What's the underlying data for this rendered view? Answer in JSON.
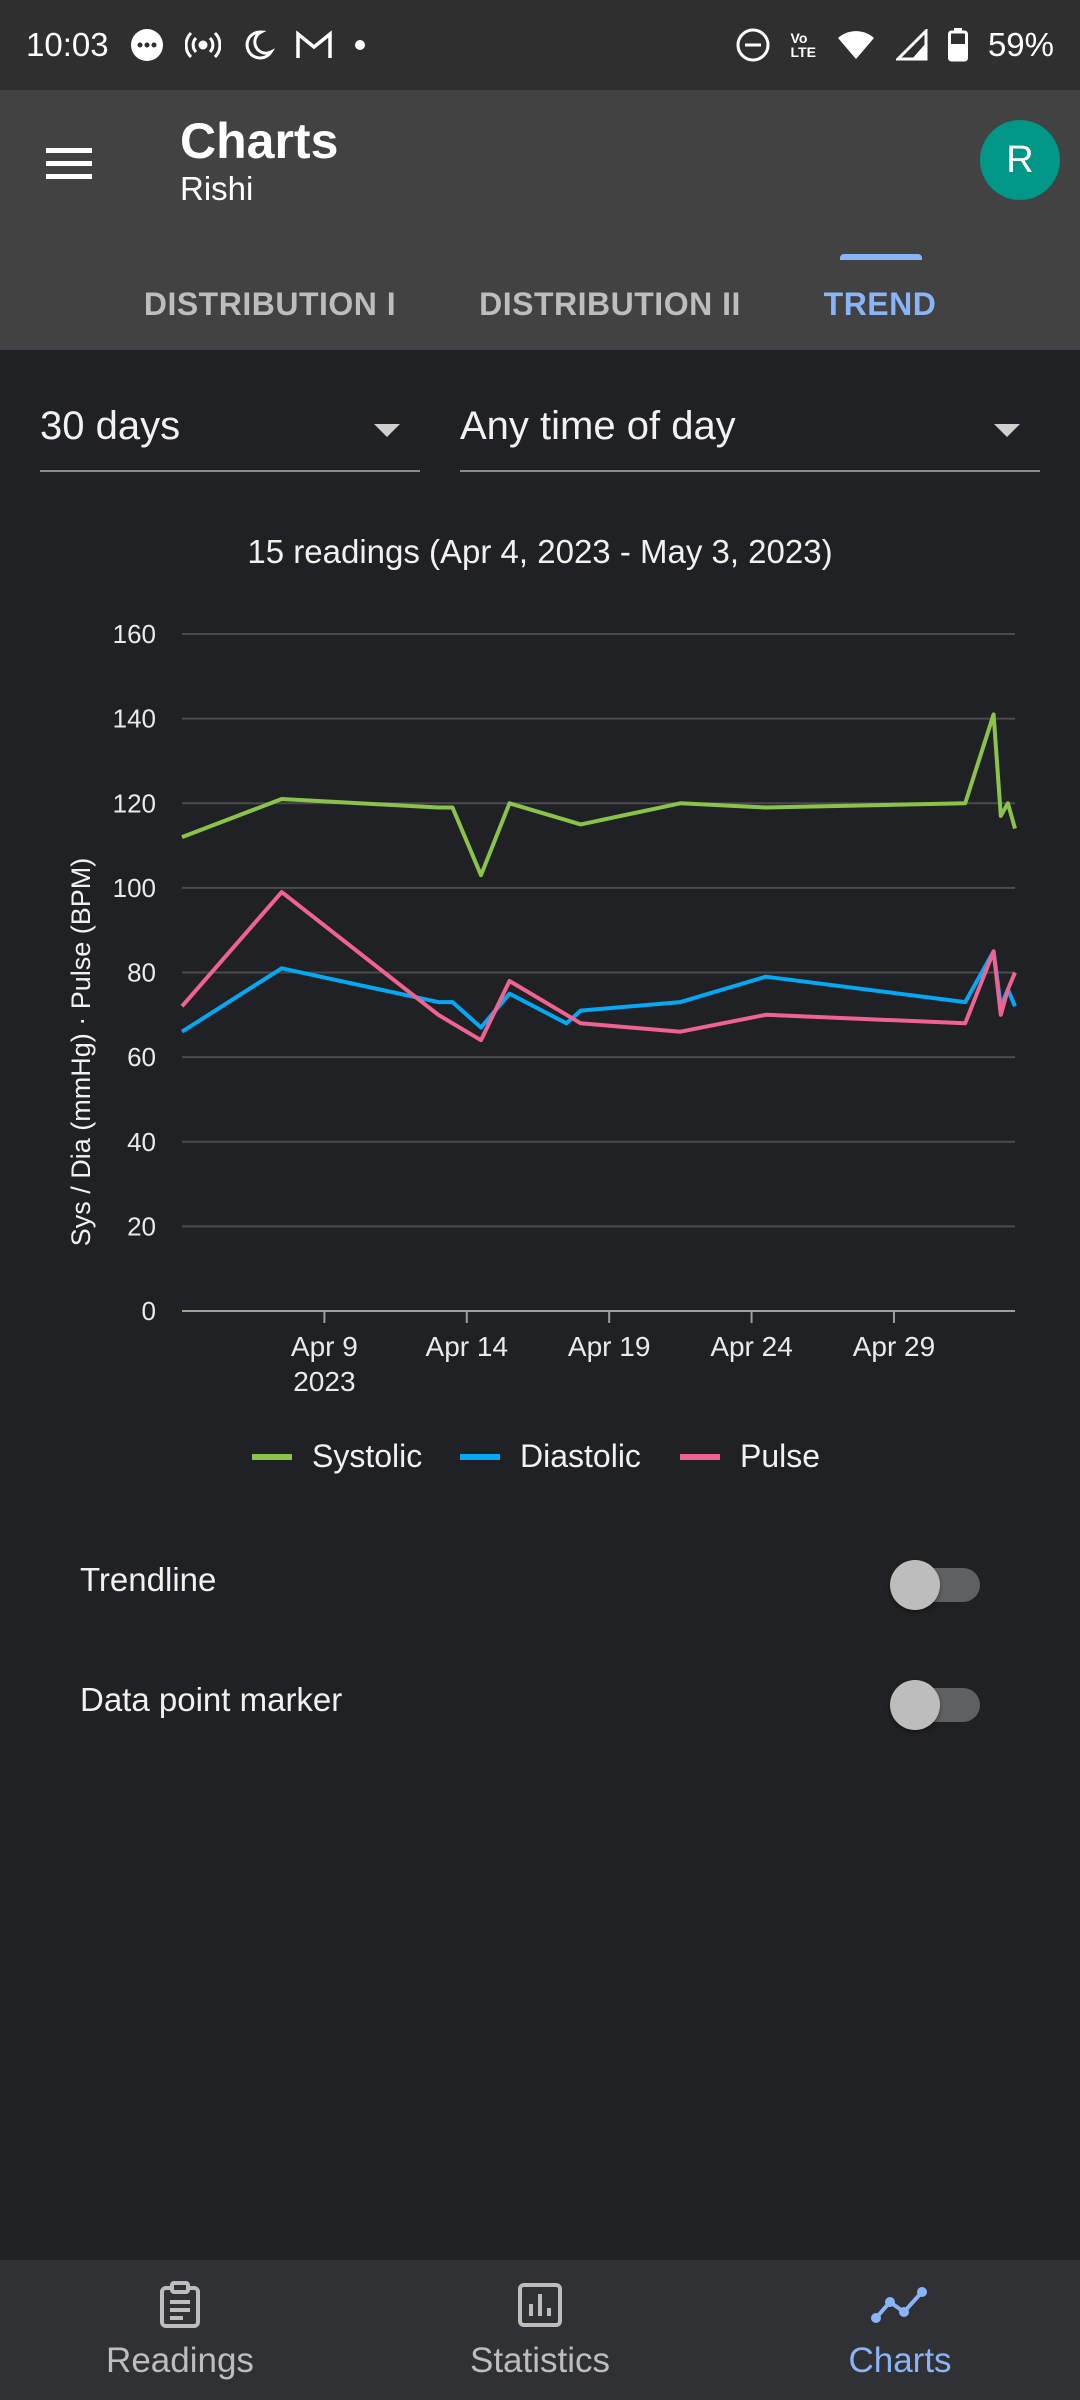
{
  "status_bar": {
    "time": "10:03",
    "battery": "59%",
    "icons": [
      "message-icon",
      "hotspot-icon",
      "bedtime-icon",
      "gmail-icon",
      "dot-icon",
      "do-not-disturb-icon",
      "volte-icon",
      "wifi-icon",
      "signal-icon",
      "battery-icon"
    ],
    "volte_top": "Vo",
    "volte_bottom": "LTE"
  },
  "app_bar": {
    "title": "Charts",
    "subtitle": "Rishi",
    "avatar_letter": "R",
    "avatar_color": "#009688"
  },
  "tabs": [
    {
      "label": "DISTRIBUTION I",
      "active": false
    },
    {
      "label": "DISTRIBUTION II",
      "active": false
    },
    {
      "label": "TREND",
      "active": true
    }
  ],
  "filters": {
    "range": "30 days",
    "time_of_day": "Any time of day"
  },
  "chart_data": {
    "type": "line",
    "title": "15 readings (Apr 4, 2023 - May 3, 2023)",
    "ylabel": "Sys / Dia (mmHg) · Pulse (BPM)",
    "xlabel": "",
    "ylim": [
      0,
      160
    ],
    "yticks": [
      "0",
      "20",
      "40",
      "60",
      "80",
      "100",
      "120",
      "140",
      "160"
    ],
    "xlim": [
      "2023-04-04",
      "2023-05-03"
    ],
    "xticks": [
      {
        "date": "2023-04-09",
        "label": "Apr 9",
        "sub": "2023"
      },
      {
        "date": "2023-04-14",
        "label": "Apr 14",
        "sub": ""
      },
      {
        "date": "2023-04-19",
        "label": "Apr 19",
        "sub": ""
      },
      {
        "date": "2023-04-24",
        "label": "Apr 24",
        "sub": ""
      },
      {
        "date": "2023-04-29",
        "label": "Apr 29",
        "sub": ""
      }
    ],
    "grid": true,
    "legend_position": "bottom",
    "x": [
      "2023-04-04 00:00",
      "2023-04-07 12:00",
      "2023-04-13 00:00",
      "2023-04-13 12:00",
      "2023-04-14 12:00",
      "2023-04-15 12:00",
      "2023-04-17 12:00",
      "2023-04-18 00:00",
      "2023-04-21 12:00",
      "2023-04-24 12:00",
      "2023-05-01 12:00",
      "2023-05-02 12:00",
      "2023-05-02 18:00",
      "2023-05-03 00:00",
      "2023-05-03 06:00"
    ],
    "series": [
      {
        "name": "Systolic",
        "color": "#8bc34a",
        "values": [
          112,
          121,
          119,
          119,
          103,
          120,
          116,
          115,
          120,
          119,
          120,
          141,
          117,
          120,
          114
        ]
      },
      {
        "name": "Diastolic",
        "color": "#03a9f4",
        "values": [
          66,
          81,
          73,
          73,
          67,
          75,
          68,
          71,
          73,
          79,
          73,
          85,
          72,
          76,
          72
        ]
      },
      {
        "name": "Pulse",
        "color": "#f06292",
        "values": [
          72,
          99,
          70,
          68,
          64,
          78,
          70,
          68,
          66,
          70,
          68,
          85,
          70,
          76,
          80
        ]
      }
    ]
  },
  "toggles": [
    {
      "label": "Trendline",
      "on": false
    },
    {
      "label": "Data point marker",
      "on": false
    }
  ],
  "bottom_nav": [
    {
      "label": "Readings",
      "icon": "clipboard-icon",
      "active": false
    },
    {
      "label": "Statistics",
      "icon": "bar-chart-icon",
      "active": false
    },
    {
      "label": "Charts",
      "icon": "trend-line-icon",
      "active": true
    }
  ]
}
